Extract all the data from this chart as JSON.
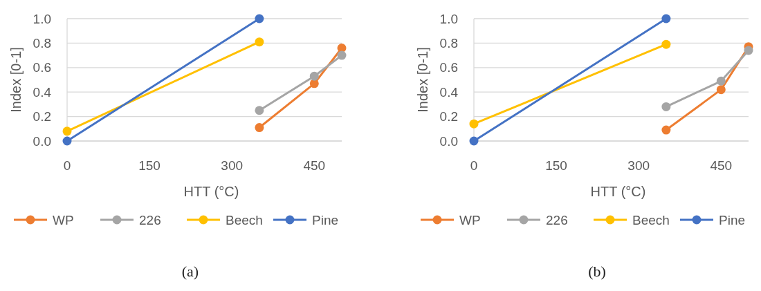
{
  "chart_data": [
    {
      "type": "line",
      "xlabel": "HTT (°C)",
      "ylabel": "Index [0-1]",
      "xlim": [
        0,
        500
      ],
      "xticks": [
        0,
        150,
        300,
        450
      ],
      "ylim": [
        0,
        1
      ],
      "yticks": [
        {
          "value": 0,
          "label": "0.0"
        },
        {
          "value": 0.2,
          "label": "0.2"
        },
        {
          "value": 0.4,
          "label": "0.4"
        },
        {
          "value": 0.6,
          "label": "0.6"
        },
        {
          "value": 0.8,
          "label": "0.8"
        },
        {
          "value": 1,
          "label": "1.0"
        }
      ],
      "grid": "y",
      "legend": "bottom",
      "marker": "circle",
      "line_style": "solid",
      "annotations": [
        "(a)"
      ],
      "series": [
        {
          "name": "WP",
          "color": "#ed7d31",
          "x": [
            350,
            450,
            500
          ],
          "values": [
            0.11,
            0.47,
            0.76
          ]
        },
        {
          "name": "226",
          "color": "#a5a5a5",
          "x": [
            350,
            450,
            500
          ],
          "values": [
            0.25,
            0.53,
            0.7
          ]
        },
        {
          "name": "Beech",
          "color": "#ffc000",
          "x": [
            0,
            350
          ],
          "values": [
            0.08,
            0.81
          ]
        },
        {
          "name": "Pine",
          "color": "#4472c4",
          "x": [
            0,
            350
          ],
          "values": [
            0,
            1
          ]
        }
      ]
    },
    {
      "type": "line",
      "xlabel": "HTT (°C)",
      "ylabel": "Index [0-1]",
      "xlim": [
        0,
        500
      ],
      "xticks": [
        0,
        150,
        300,
        450
      ],
      "ylim": [
        0,
        1
      ],
      "yticks": [
        {
          "value": 0,
          "label": "0.0"
        },
        {
          "value": 0.2,
          "label": "0.2"
        },
        {
          "value": 0.4,
          "label": "0.4"
        },
        {
          "value": 0.6,
          "label": "0.6"
        },
        {
          "value": 0.8,
          "label": "0.8"
        },
        {
          "value": 1,
          "label": "1.0"
        }
      ],
      "grid": "y",
      "legend": "bottom",
      "marker": "circle",
      "line_style": "solid",
      "annotations": [
        "(b)"
      ],
      "series": [
        {
          "name": "WP",
          "color": "#ed7d31",
          "x": [
            350,
            450,
            500
          ],
          "values": [
            0.09,
            0.42,
            0.77
          ]
        },
        {
          "name": "226",
          "color": "#a5a5a5",
          "x": [
            350,
            450,
            500
          ],
          "values": [
            0.28,
            0.49,
            0.74
          ]
        },
        {
          "name": "Beech",
          "color": "#ffc000",
          "x": [
            0,
            350
          ],
          "values": [
            0.14,
            0.79
          ]
        },
        {
          "name": "Pine",
          "color": "#4472c4",
          "x": [
            0,
            350
          ],
          "values": [
            0,
            1
          ]
        }
      ]
    }
  ]
}
